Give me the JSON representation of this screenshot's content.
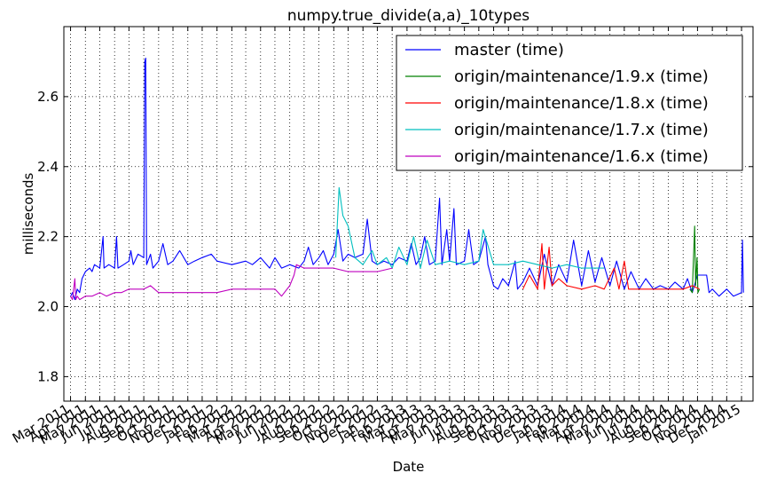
{
  "chart_data": {
    "type": "line",
    "title": "numpy.true_divide(a,a)_10types",
    "xlabel": "Date",
    "ylabel": "milliseconds",
    "xlim": [
      "2011-02-15",
      "2015-01-25"
    ],
    "ylim": [
      1.73,
      2.8
    ],
    "grid": true,
    "legend_position": "top-right",
    "y_ticks": [
      1.8,
      2.0,
      2.2,
      2.4,
      2.6
    ],
    "y_tick_labels": [
      "1.8",
      "2.0",
      "2.2",
      "2.4",
      "2.6"
    ],
    "x_ticks": [
      "2011-03-01",
      "2011-04-01",
      "2011-05-01",
      "2011-06-01",
      "2011-07-01",
      "2011-08-01",
      "2011-09-01",
      "2011-10-01",
      "2011-11-01",
      "2011-12-01",
      "2012-01-01",
      "2012-02-01",
      "2012-03-01",
      "2012-04-01",
      "2012-05-01",
      "2012-06-01",
      "2012-07-01",
      "2012-08-01",
      "2012-09-01",
      "2012-10-01",
      "2012-11-01",
      "2012-12-01",
      "2013-01-01",
      "2013-02-01",
      "2013-03-01",
      "2013-04-01",
      "2013-05-01",
      "2013-06-01",
      "2013-07-01",
      "2013-08-01",
      "2013-09-01",
      "2013-10-01",
      "2013-11-01",
      "2013-12-01",
      "2014-01-01",
      "2014-02-01",
      "2014-03-01",
      "2014-04-01",
      "2014-05-01",
      "2014-06-01",
      "2014-07-01",
      "2014-08-01",
      "2014-09-01",
      "2014-10-01",
      "2014-11-01",
      "2014-12-01",
      "2015-01-01"
    ],
    "x_tick_labels": [
      "Mar 2011",
      "Apr 2011",
      "May 2011",
      "Jun 2011",
      "Jul 2011",
      "Aug 2011",
      "Sep 2011",
      "Oct 2011",
      "Nov 2011",
      "Dec 2011",
      "Jan 2012",
      "Feb 2012",
      "Mar 2012",
      "Apr 2012",
      "May 2012",
      "Jun 2012",
      "Jul 2012",
      "Aug 2012",
      "Sep 2012",
      "Oct 2012",
      "Nov 2012",
      "Dec 2012",
      "Jan 2013",
      "Feb 2013",
      "Mar 2013",
      "Apr 2013",
      "May 2013",
      "Jun 2013",
      "Jul 2013",
      "Aug 2013",
      "Sep 2013",
      "Oct 2013",
      "Nov 2013",
      "Dec 2013",
      "Jan 2014",
      "Feb 2014",
      "Mar 2014",
      "Apr 2014",
      "May 2014",
      "Jun 2014",
      "Jul 2014",
      "Aug 2014",
      "Sep 2014",
      "Oct 2014",
      "Nov 2014",
      "Dec 2014",
      "Jan 2015"
    ],
    "series": [
      {
        "name": "master (time)",
        "color": "#0000ff",
        "points": [
          [
            "2011-03-01",
            2.03
          ],
          [
            "2011-03-05",
            2.04
          ],
          [
            "2011-03-10",
            2.02
          ],
          [
            "2011-03-15",
            2.05
          ],
          [
            "2011-03-20",
            2.04
          ],
          [
            "2011-03-25",
            2.08
          ],
          [
            "2011-04-01",
            2.1
          ],
          [
            "2011-04-10",
            2.11
          ],
          [
            "2011-04-15",
            2.1
          ],
          [
            "2011-04-20",
            2.12
          ],
          [
            "2011-05-01",
            2.11
          ],
          [
            "2011-05-08",
            2.2
          ],
          [
            "2011-05-10",
            2.11
          ],
          [
            "2011-05-20",
            2.12
          ],
          [
            "2011-06-01",
            2.11
          ],
          [
            "2011-06-05",
            2.2
          ],
          [
            "2011-06-08",
            2.11
          ],
          [
            "2011-06-20",
            2.12
          ],
          [
            "2011-07-01",
            2.13
          ],
          [
            "2011-07-05",
            2.16
          ],
          [
            "2011-07-10",
            2.12
          ],
          [
            "2011-07-20",
            2.15
          ],
          [
            "2011-08-01",
            2.14
          ],
          [
            "2011-08-03",
            2.7
          ],
          [
            "2011-08-05",
            2.71
          ],
          [
            "2011-08-07",
            2.12
          ],
          [
            "2011-08-15",
            2.15
          ],
          [
            "2011-08-20",
            2.11
          ],
          [
            "2011-09-01",
            2.13
          ],
          [
            "2011-09-10",
            2.18
          ],
          [
            "2011-09-20",
            2.12
          ],
          [
            "2011-10-01",
            2.13
          ],
          [
            "2011-10-15",
            2.16
          ],
          [
            "2011-11-01",
            2.12
          ],
          [
            "2011-11-15",
            2.13
          ],
          [
            "2011-12-01",
            2.14
          ],
          [
            "2011-12-20",
            2.15
          ],
          [
            "2012-01-01",
            2.13
          ],
          [
            "2012-02-01",
            2.12
          ],
          [
            "2012-03-01",
            2.13
          ],
          [
            "2012-03-15",
            2.12
          ],
          [
            "2012-04-01",
            2.14
          ],
          [
            "2012-04-20",
            2.11
          ],
          [
            "2012-05-01",
            2.14
          ],
          [
            "2012-05-15",
            2.11
          ],
          [
            "2012-06-01",
            2.12
          ],
          [
            "2012-06-20",
            2.11
          ],
          [
            "2012-07-01",
            2.13
          ],
          [
            "2012-07-10",
            2.17
          ],
          [
            "2012-07-20",
            2.12
          ],
          [
            "2012-08-01",
            2.14
          ],
          [
            "2012-08-10",
            2.16
          ],
          [
            "2012-08-20",
            2.12
          ],
          [
            "2012-09-01",
            2.15
          ],
          [
            "2012-09-10",
            2.22
          ],
          [
            "2012-09-20",
            2.13
          ],
          [
            "2012-10-01",
            2.15
          ],
          [
            "2012-10-15",
            2.14
          ],
          [
            "2012-11-01",
            2.15
          ],
          [
            "2012-11-10",
            2.25
          ],
          [
            "2012-11-20",
            2.13
          ],
          [
            "2012-12-01",
            2.12
          ],
          [
            "2012-12-15",
            2.13
          ],
          [
            "2013-01-01",
            2.12
          ],
          [
            "2013-01-15",
            2.14
          ],
          [
            "2013-02-01",
            2.13
          ],
          [
            "2013-02-10",
            2.18
          ],
          [
            "2013-02-20",
            2.12
          ],
          [
            "2013-03-01",
            2.14
          ],
          [
            "2013-03-10",
            2.2
          ],
          [
            "2013-03-20",
            2.12
          ],
          [
            "2013-04-01",
            2.13
          ],
          [
            "2013-04-10",
            2.31
          ],
          [
            "2013-04-15",
            2.12
          ],
          [
            "2013-04-25",
            2.22
          ],
          [
            "2013-05-01",
            2.13
          ],
          [
            "2013-05-10",
            2.28
          ],
          [
            "2013-05-15",
            2.12
          ],
          [
            "2013-06-01",
            2.13
          ],
          [
            "2013-06-10",
            2.22
          ],
          [
            "2013-06-20",
            2.12
          ],
          [
            "2013-07-01",
            2.13
          ],
          [
            "2013-07-15",
            2.2
          ],
          [
            "2013-07-20",
            2.12
          ],
          [
            "2013-08-01",
            2.06
          ],
          [
            "2013-08-10",
            2.05
          ],
          [
            "2013-08-20",
            2.08
          ],
          [
            "2013-09-01",
            2.06
          ],
          [
            "2013-09-15",
            2.13
          ],
          [
            "2013-09-20",
            2.05
          ],
          [
            "2013-10-01",
            2.07
          ],
          [
            "2013-10-15",
            2.11
          ],
          [
            "2013-11-01",
            2.06
          ],
          [
            "2013-11-15",
            2.15
          ],
          [
            "2013-12-01",
            2.06
          ],
          [
            "2013-12-15",
            2.12
          ],
          [
            "2014-01-01",
            2.07
          ],
          [
            "2014-01-15",
            2.19
          ],
          [
            "2014-02-01",
            2.06
          ],
          [
            "2014-02-15",
            2.16
          ],
          [
            "2014-03-01",
            2.07
          ],
          [
            "2014-03-15",
            2.14
          ],
          [
            "2014-04-01",
            2.06
          ],
          [
            "2014-04-15",
            2.13
          ],
          [
            "2014-05-01",
            2.05
          ],
          [
            "2014-05-15",
            2.1
          ],
          [
            "2014-06-01",
            2.05
          ],
          [
            "2014-06-15",
            2.08
          ],
          [
            "2014-07-01",
            2.05
          ],
          [
            "2014-07-15",
            2.06
          ],
          [
            "2014-08-01",
            2.05
          ],
          [
            "2014-08-15",
            2.07
          ],
          [
            "2014-09-01",
            2.05
          ],
          [
            "2014-09-10",
            2.08
          ],
          [
            "2014-09-20",
            2.04
          ],
          [
            "2014-10-01",
            2.09
          ],
          [
            "2014-10-20",
            2.09
          ],
          [
            "2014-10-25",
            2.04
          ],
          [
            "2014-11-01",
            2.05
          ],
          [
            "2014-11-15",
            2.03
          ],
          [
            "2014-12-01",
            2.05
          ],
          [
            "2014-12-15",
            2.03
          ],
          [
            "2015-01-01",
            2.04
          ],
          [
            "2015-01-03",
            2.19
          ],
          [
            "2015-01-05",
            2.04
          ]
        ]
      },
      {
        "name": "origin/maintenance/1.9.x (time)",
        "color": "#008000",
        "points": [
          [
            "2014-09-15",
            2.05
          ],
          [
            "2014-09-20",
            2.04
          ],
          [
            "2014-09-25",
            2.23
          ],
          [
            "2014-09-27",
            2.06
          ],
          [
            "2014-09-30",
            2.14
          ],
          [
            "2014-10-02",
            2.04
          ],
          [
            "2014-10-05",
            2.05
          ]
        ]
      },
      {
        "name": "origin/maintenance/1.8.x (time)",
        "color": "#ff0000",
        "points": [
          [
            "2013-10-01",
            2.05
          ],
          [
            "2013-10-15",
            2.09
          ],
          [
            "2013-11-01",
            2.05
          ],
          [
            "2013-11-10",
            2.18
          ],
          [
            "2013-11-15",
            2.05
          ],
          [
            "2013-11-25",
            2.17
          ],
          [
            "2013-12-01",
            2.06
          ],
          [
            "2013-12-15",
            2.08
          ],
          [
            "2014-01-01",
            2.06
          ],
          [
            "2014-02-01",
            2.05
          ],
          [
            "2014-03-01",
            2.06
          ],
          [
            "2014-03-20",
            2.05
          ],
          [
            "2014-04-10",
            2.11
          ],
          [
            "2014-04-20",
            2.05
          ],
          [
            "2014-05-01",
            2.13
          ],
          [
            "2014-05-10",
            2.05
          ],
          [
            "2014-06-01",
            2.05
          ],
          [
            "2014-07-01",
            2.05
          ],
          [
            "2014-08-01",
            2.05
          ],
          [
            "2014-09-01",
            2.05
          ],
          [
            "2014-09-20",
            2.06
          ],
          [
            "2014-10-05",
            2.05
          ]
        ]
      },
      {
        "name": "origin/maintenance/1.7.x (time)",
        "color": "#00bfbf",
        "points": [
          [
            "2012-09-05",
            2.14
          ],
          [
            "2012-09-12",
            2.34
          ],
          [
            "2012-09-20",
            2.26
          ],
          [
            "2012-10-01",
            2.23
          ],
          [
            "2012-10-15",
            2.14
          ],
          [
            "2012-11-01",
            2.12
          ],
          [
            "2012-11-20",
            2.16
          ],
          [
            "2012-12-01",
            2.12
          ],
          [
            "2012-12-20",
            2.14
          ],
          [
            "2013-01-01",
            2.11
          ],
          [
            "2013-01-15",
            2.17
          ],
          [
            "2013-02-01",
            2.12
          ],
          [
            "2013-02-15",
            2.2
          ],
          [
            "2013-03-01",
            2.11
          ],
          [
            "2013-03-15",
            2.19
          ],
          [
            "2013-04-01",
            2.12
          ],
          [
            "2013-05-01",
            2.13
          ],
          [
            "2013-06-01",
            2.12
          ],
          [
            "2013-07-01",
            2.13
          ],
          [
            "2013-07-10",
            2.22
          ],
          [
            "2013-08-01",
            2.12
          ],
          [
            "2013-09-01",
            2.12
          ],
          [
            "2013-10-01",
            2.13
          ],
          [
            "2013-11-01",
            2.12
          ],
          [
            "2013-12-01",
            2.11
          ],
          [
            "2014-01-01",
            2.12
          ],
          [
            "2014-02-01",
            2.11
          ],
          [
            "2014-03-01",
            2.11
          ],
          [
            "2014-03-20",
            2.11
          ]
        ]
      },
      {
        "name": "origin/maintenance/1.6.x (time)",
        "color": "#bf00bf",
        "points": [
          [
            "2011-03-01",
            2.03
          ],
          [
            "2011-03-05",
            2.02
          ],
          [
            "2011-03-10",
            2.08
          ],
          [
            "2011-03-12",
            2.02
          ],
          [
            "2011-03-15",
            2.03
          ],
          [
            "2011-03-20",
            2.02
          ],
          [
            "2011-04-01",
            2.03
          ],
          [
            "2011-04-15",
            2.03
          ],
          [
            "2011-05-01",
            2.04
          ],
          [
            "2011-05-15",
            2.03
          ],
          [
            "2011-06-01",
            2.04
          ],
          [
            "2011-06-15",
            2.04
          ],
          [
            "2011-07-01",
            2.05
          ],
          [
            "2011-07-15",
            2.05
          ],
          [
            "2011-08-01",
            2.05
          ],
          [
            "2011-08-15",
            2.06
          ],
          [
            "2011-09-01",
            2.04
          ],
          [
            "2011-09-15",
            2.04
          ],
          [
            "2011-10-01",
            2.04
          ],
          [
            "2011-11-01",
            2.04
          ],
          [
            "2011-12-01",
            2.04
          ],
          [
            "2012-01-01",
            2.04
          ],
          [
            "2012-02-01",
            2.05
          ],
          [
            "2012-03-01",
            2.05
          ],
          [
            "2012-04-01",
            2.05
          ],
          [
            "2012-05-01",
            2.05
          ],
          [
            "2012-05-15",
            2.03
          ],
          [
            "2012-06-01",
            2.06
          ],
          [
            "2012-06-10",
            2.09
          ],
          [
            "2012-06-15",
            2.12
          ],
          [
            "2012-07-01",
            2.11
          ],
          [
            "2012-08-01",
            2.11
          ],
          [
            "2012-09-01",
            2.11
          ],
          [
            "2012-10-01",
            2.1
          ],
          [
            "2012-11-01",
            2.1
          ],
          [
            "2012-12-01",
            2.1
          ],
          [
            "2013-01-01",
            2.11
          ]
        ]
      }
    ]
  }
}
